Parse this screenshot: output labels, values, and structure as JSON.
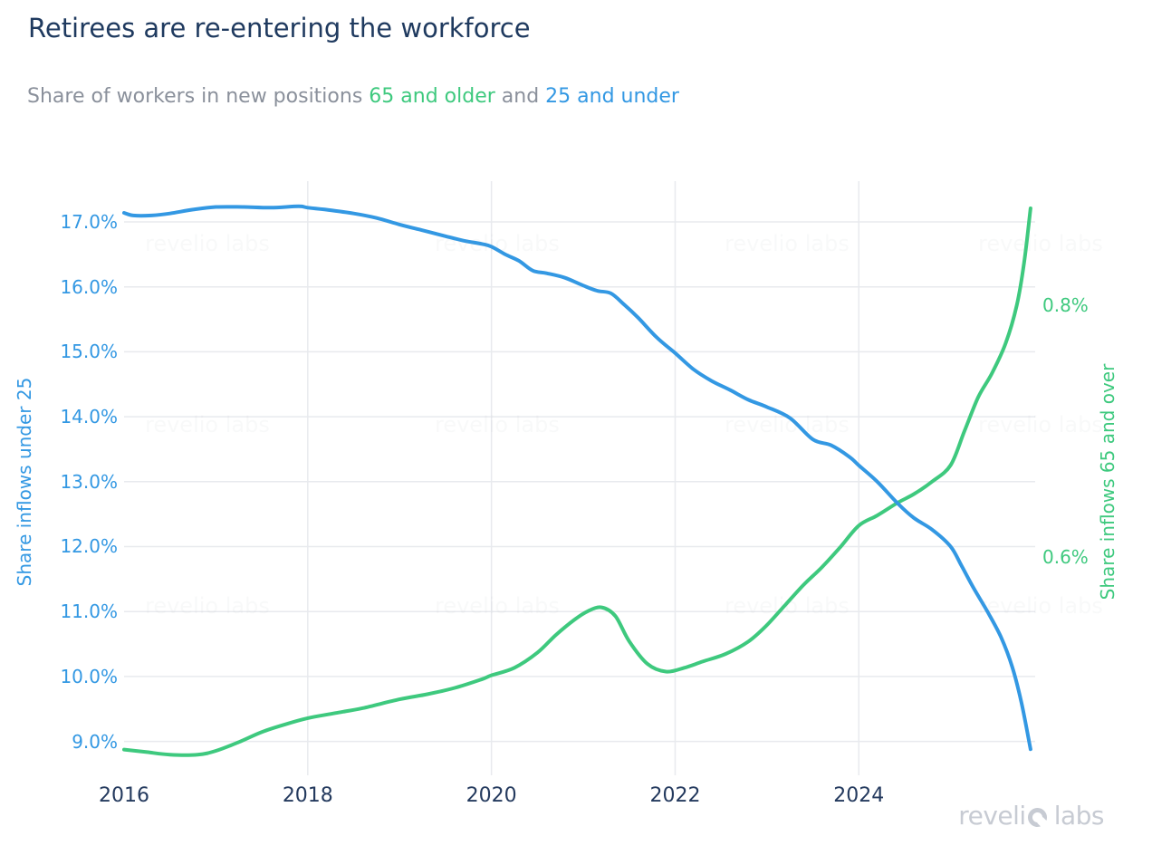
{
  "page": {
    "title": "Retirees are re-entering the workforce",
    "subtitle": {
      "prefix": "Share of workers in new positions ",
      "series_65_label": "65 and older",
      "connector": " and ",
      "series_25_label": "25 and under"
    },
    "branding": {
      "logo_part1": "reveli",
      "logo_part2": "labs",
      "logo_full": "revelio labs",
      "logo_o_icon": "notched-ring-icon"
    }
  },
  "colors": {
    "title_navy": "#1f3a5f",
    "subtitle_gray": "#8a909b",
    "blue": "#3398e3",
    "green": "#3ec97e",
    "x_tick_navy": "#243a5e",
    "gridline": "#e8eaee",
    "logo_gray": "#c7cbd3"
  },
  "chart_data": {
    "type": "line",
    "title": "Retirees are re-entering the workforce",
    "subtitle": "Share of workers in new positions 65 and older and 25 and under",
    "grid": "on",
    "legend_position": "none (series identified by colored text in subtitle and axis titles)",
    "x_axis": {
      "range": [
        2016,
        2025.92
      ],
      "ticks": [
        {
          "v": 2016,
          "label": "2016"
        },
        {
          "v": 2018,
          "label": "2018"
        },
        {
          "v": 2020,
          "label": "2020"
        },
        {
          "v": 2022,
          "label": "2022"
        },
        {
          "v": 2024,
          "label": "2024"
        }
      ],
      "gridlines": [
        2018,
        2020,
        2022,
        2024
      ]
    },
    "left_axis": {
      "title": "Share inflows under 25",
      "unit": "%",
      "range": [
        8.478,
        17.628
      ],
      "ticks": [
        {
          "v": 17,
          "label": "17.0%"
        },
        {
          "v": 16,
          "label": "16.0%"
        },
        {
          "v": 15,
          "label": "15.0%"
        },
        {
          "v": 14,
          "label": "14.0%"
        },
        {
          "v": 13,
          "label": "13.0%"
        },
        {
          "v": 12,
          "label": "12.0%"
        },
        {
          "v": 11,
          "label": "11.0%"
        },
        {
          "v": 10,
          "label": "10.0%"
        },
        {
          "v": 9,
          "label": "9.0%"
        }
      ]
    },
    "right_axis": {
      "title": "Share inflows 65 and over",
      "unit": "%",
      "range": [
        0.4266,
        0.8986
      ],
      "ticks": [
        {
          "v": 0.8,
          "label": "0.8%"
        },
        {
          "v": 0.6,
          "label": "0.6%"
        }
      ]
    },
    "series": [
      {
        "name": "65 and older",
        "axis": "right",
        "color": "#3ec97e",
        "points": [
          [
            2016.0,
            0.447
          ],
          [
            2016.25,
            0.445
          ],
          [
            2016.5,
            0.443
          ],
          [
            2016.8,
            0.443
          ],
          [
            2017.0,
            0.446
          ],
          [
            2017.25,
            0.453
          ],
          [
            2017.5,
            0.461
          ],
          [
            2017.75,
            0.467
          ],
          [
            2018.0,
            0.472
          ],
          [
            2018.3,
            0.476
          ],
          [
            2018.6,
            0.48
          ],
          [
            2019.0,
            0.487
          ],
          [
            2019.3,
            0.491
          ],
          [
            2019.6,
            0.496
          ],
          [
            2019.9,
            0.503
          ],
          [
            2020.0,
            0.506
          ],
          [
            2020.25,
            0.512
          ],
          [
            2020.5,
            0.524
          ],
          [
            2020.7,
            0.538
          ],
          [
            2020.9,
            0.55
          ],
          [
            2021.05,
            0.557
          ],
          [
            2021.2,
            0.56
          ],
          [
            2021.35,
            0.553
          ],
          [
            2021.5,
            0.533
          ],
          [
            2021.7,
            0.515
          ],
          [
            2021.9,
            0.509
          ],
          [
            2022.1,
            0.512
          ],
          [
            2022.3,
            0.517
          ],
          [
            2022.55,
            0.523
          ],
          [
            2022.8,
            0.533
          ],
          [
            2023.0,
            0.546
          ],
          [
            2023.2,
            0.562
          ],
          [
            2023.4,
            0.578
          ],
          [
            2023.6,
            0.592
          ],
          [
            2023.8,
            0.608
          ],
          [
            2024.0,
            0.625
          ],
          [
            2024.2,
            0.633
          ],
          [
            2024.42,
            0.643
          ],
          [
            2024.6,
            0.65
          ],
          [
            2024.8,
            0.66
          ],
          [
            2025.0,
            0.673
          ],
          [
            2025.15,
            0.7
          ],
          [
            2025.3,
            0.727
          ],
          [
            2025.45,
            0.746
          ],
          [
            2025.6,
            0.77
          ],
          [
            2025.72,
            0.8
          ],
          [
            2025.8,
            0.834
          ],
          [
            2025.87,
            0.877
          ]
        ]
      },
      {
        "name": "25 and under",
        "axis": "left",
        "color": "#3398e3",
        "points": [
          [
            2016.0,
            17.14
          ],
          [
            2016.1,
            17.1
          ],
          [
            2016.3,
            17.1
          ],
          [
            2016.5,
            17.13
          ],
          [
            2016.75,
            17.19
          ],
          [
            2017.0,
            17.23
          ],
          [
            2017.3,
            17.23
          ],
          [
            2017.6,
            17.22
          ],
          [
            2017.9,
            17.24
          ],
          [
            2018.0,
            17.22
          ],
          [
            2018.25,
            17.18
          ],
          [
            2018.5,
            17.13
          ],
          [
            2018.75,
            17.06
          ],
          [
            2019.0,
            16.96
          ],
          [
            2019.25,
            16.87
          ],
          [
            2019.5,
            16.78
          ],
          [
            2019.7,
            16.71
          ],
          [
            2019.9,
            16.66
          ],
          [
            2020.0,
            16.62
          ],
          [
            2020.15,
            16.5
          ],
          [
            2020.3,
            16.4
          ],
          [
            2020.45,
            16.25
          ],
          [
            2020.6,
            16.21
          ],
          [
            2020.8,
            16.14
          ],
          [
            2021.0,
            16.02
          ],
          [
            2021.15,
            15.94
          ],
          [
            2021.3,
            15.9
          ],
          [
            2021.45,
            15.72
          ],
          [
            2021.6,
            15.52
          ],
          [
            2021.8,
            15.22
          ],
          [
            2022.0,
            14.98
          ],
          [
            2022.2,
            14.73
          ],
          [
            2022.4,
            14.55
          ],
          [
            2022.6,
            14.41
          ],
          [
            2022.8,
            14.26
          ],
          [
            2023.0,
            14.15
          ],
          [
            2023.25,
            13.98
          ],
          [
            2023.5,
            13.65
          ],
          [
            2023.7,
            13.56
          ],
          [
            2023.9,
            13.38
          ],
          [
            2024.0,
            13.25
          ],
          [
            2024.2,
            13.0
          ],
          [
            2024.42,
            12.67
          ],
          [
            2024.6,
            12.44
          ],
          [
            2024.8,
            12.26
          ],
          [
            2025.0,
            12.0
          ],
          [
            2025.12,
            11.7
          ],
          [
            2025.25,
            11.36
          ],
          [
            2025.4,
            11.0
          ],
          [
            2025.55,
            10.6
          ],
          [
            2025.67,
            10.15
          ],
          [
            2025.77,
            9.6
          ],
          [
            2025.87,
            8.88
          ]
        ]
      }
    ]
  }
}
